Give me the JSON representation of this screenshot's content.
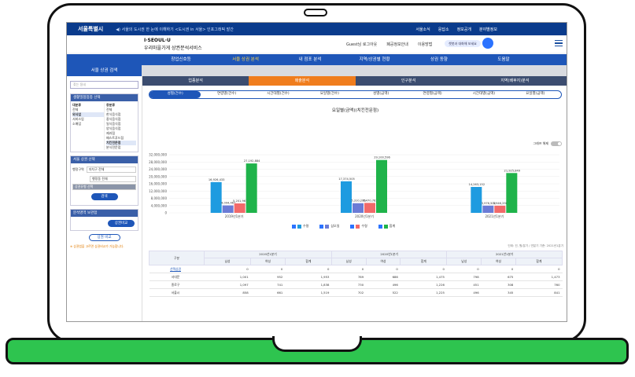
{
  "topbar": {
    "logo": "서울특별시",
    "notice": "◀) 서울의 도시권 한 눈에 이해하기 <도시권 in 서울> 인포그래픽 발간",
    "links": [
      "서울소식",
      "응답소",
      "정보공개",
      "분야별정보"
    ]
  },
  "header": {
    "brand_line1": "I·SEOUL·U",
    "brand_line2": "우리마을가게 상권분석서비스",
    "links": [
      "Guest님 로그아웃",
      "폐공정보안내",
      "이용방법"
    ],
    "chat_pill": "챗봇과 대화해 보세요"
  },
  "mainnav": [
    "창업신호등",
    "서울 상권 분석",
    "내 점포 분석",
    "지역/상권별 현황",
    "상권 동향",
    "도움말"
  ],
  "sidebar": {
    "title": "서울 상권 검색",
    "search_placeholder": "찾는 동네",
    "industry_title": "생활밀접업종 선택",
    "col_major": "대분류",
    "col_minor": "중분류",
    "majors": [
      "전체",
      "외식업",
      "서비스업",
      "소매업"
    ],
    "minors": [
      "전체",
      "한식음식점",
      "중식음식점",
      "일식음식점",
      "양식음식점",
      "제과점",
      "패스트푸드점",
      "치킨전문점",
      "분식전문점"
    ],
    "selected_minor": "치킨전문점",
    "area_title": "서울 상권 선택",
    "area_label": "행정구역",
    "select_gu": "자치구 전체",
    "select_dong": "행정동 전체",
    "filter_label": "상권유형 선택",
    "search_btn": "검색",
    "analysis_title": "분석영역 보관함",
    "store_btn": "상권비교",
    "compare_btn": "상권 비교",
    "note": "※ 상권법을 고르면 상권비교가 가능합니다."
  },
  "tabs_main": [
    "업종분석",
    "매출분석",
    "인구분석",
    "지역(배후지)분석"
  ],
  "tabs_sub": [
    "성별(건수)",
    "연령별(건수)",
    "시간대별(건수)",
    "요일별(건수)",
    "성별(금액)",
    "연령별(금액)",
    "시간대별(금액)",
    "요일별(금액)"
  ],
  "chart_title": "요일별(금액)(치킨전문점)",
  "toggle_label": "그래프 해제",
  "chart_data": {
    "type": "bar",
    "categories": [
      "2019년1분기",
      "2020년1분기",
      "2021년1분기"
    ],
    "series": [
      {
        "name": "수령",
        "values": [
          16926433,
          17374505,
          14263152
        ],
        "color": "#1e9be0"
      },
      {
        "name": "삼오일",
        "values": [
          4094467,
          5310296,
          3976502
        ],
        "color": "#6b7bd6"
      },
      {
        "name": "수령",
        "values": [
          5201967,
          5470782,
          3946296
        ],
        "color": "#f26a6a"
      },
      {
        "name": "합계",
        "values": [
          27192884,
          29100596,
          21925849
        ],
        "color": "#1fb34a"
      }
    ],
    "ylim": [
      0,
      32000000
    ],
    "yticks": [
      0,
      4000000,
      8000000,
      12000000,
      16000000,
      20000000,
      24000000,
      28000000,
      32000000
    ],
    "data_labels": [
      "16,926,433",
      "4,094,467",
      "5,201,967",
      "27,192,884",
      "17,374,505",
      "5,310,296",
      "5,470,782",
      "29,100,596",
      "14,263,152",
      "3,976,502",
      "3,946,296",
      "21,925,849"
    ]
  },
  "table": {
    "unit_note": "단위: 건, 원/분기 / 연분기 기준: 2021년1분기",
    "col_group": "구분",
    "quarters": [
      "2019년1분기",
      "2020년1분기",
      "2021년1분기"
    ],
    "sub_headers": [
      "남성",
      "여성",
      "합계"
    ],
    "rows": [
      {
        "label": "선택상권",
        "values": [
          "0",
          "0",
          "0",
          "0",
          "0",
          "0",
          "0",
          "0",
          "0"
        ]
      },
      {
        "label": "서대문",
        "values": [
          "1,001",
          "952",
          "1,953",
          "789",
          "686",
          "1,475",
          "798",
          "675",
          "1,473"
        ]
      },
      {
        "label": "종로구",
        "values": [
          "1,097",
          "741",
          "1,838",
          "730",
          "496",
          "1,226",
          "451",
          "308",
          "760"
        ]
      },
      {
        "label": "서울시",
        "values": [
          "858",
          "661",
          "1,519",
          "702",
          "522",
          "1,225",
          "496",
          "345",
          "841"
        ]
      }
    ]
  }
}
